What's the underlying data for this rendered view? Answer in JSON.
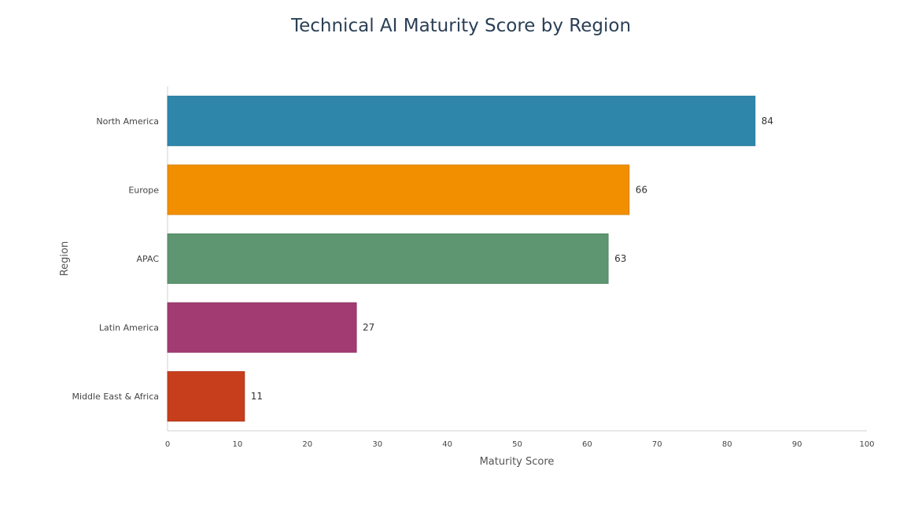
{
  "chart_data": {
    "type": "bar",
    "orientation": "horizontal",
    "title": "Technical AI Maturity Score by Region",
    "xlabel": "Maturity Score",
    "ylabel": "Region",
    "categories": [
      "North America",
      "Europe",
      "APAC",
      "Latin America",
      "Middle East & Africa"
    ],
    "values": [
      84,
      66,
      63,
      27,
      11
    ],
    "colors": [
      "#2e86ab",
      "#f18f01",
      "#5d9670",
      "#a23b72",
      "#c73e1d"
    ],
    "xlim": [
      0,
      100
    ],
    "xticks": [
      0,
      10,
      20,
      30,
      40,
      50,
      60,
      70,
      80,
      90,
      100
    ],
    "grid": false,
    "legend": "none"
  }
}
